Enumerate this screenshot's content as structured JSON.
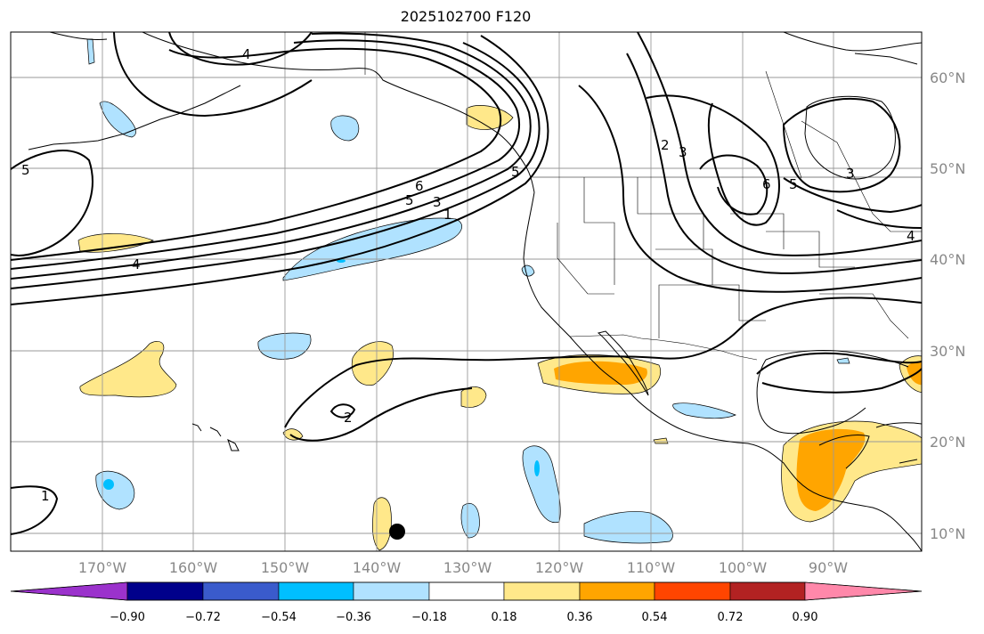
{
  "title": "2025102700 F120",
  "longitude_labels": [
    "170°W",
    "160°W",
    "150°W",
    "140°W",
    "130°W",
    "120°W",
    "110°W",
    "100°W",
    "90°W"
  ],
  "latitude_labels": [
    "60°N",
    "50°N",
    "40°N",
    "30°N",
    "20°N",
    "10°N"
  ],
  "colorbar": {
    "tick_labels": [
      "−0.90",
      "−0.72",
      "−0.54",
      "−0.36",
      "−0.18",
      "0.18",
      "0.36",
      "0.54",
      "0.72",
      "0.90"
    ],
    "colors": [
      "#9b32cc",
      "#00008b",
      "#3a5bcc",
      "#00bfff",
      "#b0e2ff",
      "#ffffff",
      "#ffe88a",
      "#ffa500",
      "#ff4500",
      "#b22222",
      "#ff88aa"
    ]
  },
  "contour_labels": [
    "4",
    "4",
    "5",
    "5",
    "6",
    "3",
    "1",
    "2",
    "3",
    "6",
    "5",
    "3",
    "4",
    "1",
    "2",
    "5"
  ],
  "marker": "black-dot"
}
